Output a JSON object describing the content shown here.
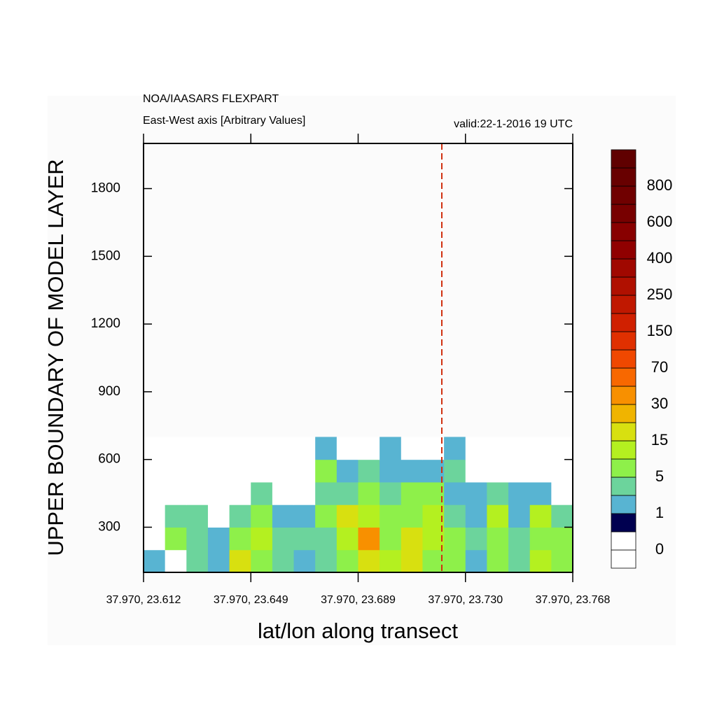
{
  "chart_data": {
    "type": "contour",
    "title": "NOA/IAASARS FLEXPART",
    "subtitle": "East-West axis [Arbitrary Values]",
    "valid_label": "valid:22-1-2016 19 UTC",
    "ylabel": "UPPER BOUNDARY OF MODEL LAYER",
    "xlabel": "lat/lon along transect",
    "xlim": [
      0,
      4
    ],
    "xticks": [
      {
        "value": 0,
        "label": "37.970, 23.612"
      },
      {
        "value": 1,
        "label": "37.970, 23.649"
      },
      {
        "value": 2,
        "label": "37.970, 23.689"
      },
      {
        "value": 3,
        "label": "37.970, 23.730"
      },
      {
        "value": 4,
        "label": "37.970, 23.768"
      }
    ],
    "ylim": [
      100,
      2000
    ],
    "yticks": [
      300,
      600,
      900,
      1200,
      1500,
      1800
    ],
    "grid_y_edges": [
      100,
      200,
      300,
      400,
      500,
      600,
      700
    ],
    "z": [
      [
        1,
        0,
        3,
        1,
        15,
        5,
        3,
        1,
        3,
        5,
        15,
        10,
        15,
        5,
        5,
        1,
        5,
        3,
        10,
        5
      ],
      [
        0,
        5,
        3,
        1,
        5,
        10,
        3,
        3,
        3,
        10,
        30,
        5,
        15,
        10,
        5,
        3,
        5,
        3,
        5,
        5
      ],
      [
        0,
        3,
        3,
        0,
        3,
        5,
        1,
        1,
        5,
        15,
        10,
        5,
        5,
        10,
        3,
        1,
        10,
        1,
        10,
        3
      ],
      [
        0,
        0,
        0,
        0,
        0,
        3,
        0,
        0,
        3,
        3,
        5,
        3,
        5,
        5,
        1,
        1,
        3,
        1,
        1,
        0
      ],
      [
        0,
        0,
        0,
        0,
        0,
        0,
        0,
        0,
        5,
        1,
        3,
        1,
        1,
        1,
        3,
        0,
        0,
        0,
        0,
        0
      ],
      [
        0,
        0,
        0,
        0,
        0,
        0,
        0,
        0,
        1,
        0,
        0,
        1,
        0,
        0,
        1,
        0,
        0,
        0,
        0,
        0
      ]
    ],
    "colorbar": {
      "levels": [
        0,
        1,
        5,
        15,
        30,
        70,
        150,
        250,
        400,
        600,
        800
      ],
      "colors": [
        "#ffffff",
        "#ffffff",
        "#000050",
        "#58b4d2",
        "#6cd49c",
        "#8ef04a",
        "#b4f020",
        "#d8e010",
        "#f0b400",
        "#f89000",
        "#f86800",
        "#f04800",
        "#e03000",
        "#d02000",
        "#c01800",
        "#b01000",
        "#a00800",
        "#900000",
        "#880000",
        "#780000",
        "#700000",
        "#680000",
        "#600000"
      ]
    }
  }
}
